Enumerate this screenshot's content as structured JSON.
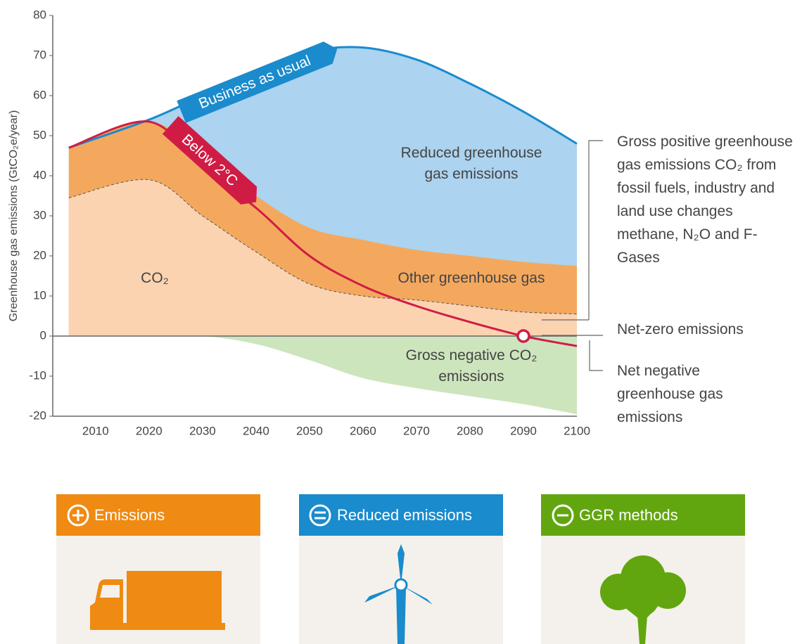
{
  "chart_data": {
    "type": "area",
    "y_label": "Greenhouse gas emissions (GtCO₂e/year)",
    "xlim": [
      2002,
      2100
    ],
    "xticks": [
      2010,
      2020,
      2030,
      2040,
      2050,
      2060,
      2070,
      2080,
      2090,
      2100
    ],
    "ylim": [
      -20,
      80
    ],
    "yticks": [
      80,
      70,
      60,
      50,
      40,
      30,
      20,
      10,
      0,
      -10,
      -20
    ],
    "x": [
      2005,
      2020,
      2030,
      2040,
      2050,
      2060,
      2070,
      2080,
      2090,
      2100
    ],
    "series": [
      {
        "name": "Business as usual",
        "kind": "line-area",
        "color": "#1a8bcc",
        "fill": "#acd3ef",
        "values": [
          47,
          54,
          60,
          66,
          71,
          72,
          69,
          63,
          56,
          48
        ]
      },
      {
        "name": "Other greenhouse gas",
        "kind": "area",
        "fill": "#f4a85e",
        "values": [
          47,
          53.5,
          45,
          35,
          27,
          24,
          21.5,
          20,
          18.5,
          17.5
        ]
      },
      {
        "name": "CO₂",
        "kind": "dashed-area",
        "fill": "#fbd3b1",
        "color": "#555555",
        "values": [
          34.5,
          39,
          30,
          21,
          13,
          10,
          9,
          7.5,
          6,
          5.5
        ]
      },
      {
        "name": "Gross negative CO₂ emissions",
        "kind": "area",
        "fill": "#cde5bd",
        "values": [
          0,
          0,
          0,
          -2,
          -6,
          -10.5,
          -13,
          -15,
          -17,
          -19.5
        ]
      },
      {
        "name": "Below 2°C",
        "kind": "line",
        "color": "#d01c45",
        "values": [
          47,
          53.5,
          42,
          32,
          20,
          12.5,
          7.5,
          3.5,
          0,
          -2.5
        ]
      }
    ],
    "area_label": "Reduced greenhouse gas emissions",
    "annotations": [
      "Gross positive greenhouse gas emissions CO₂ from fossil fuels, industry and land use changes methane, N₂O and F-Gases",
      "Net-zero emissions",
      "Net negative greenhouse gas emissions"
    ]
  },
  "cards": [
    "Emissions",
    "Reduced emissions",
    "GGR methods"
  ]
}
